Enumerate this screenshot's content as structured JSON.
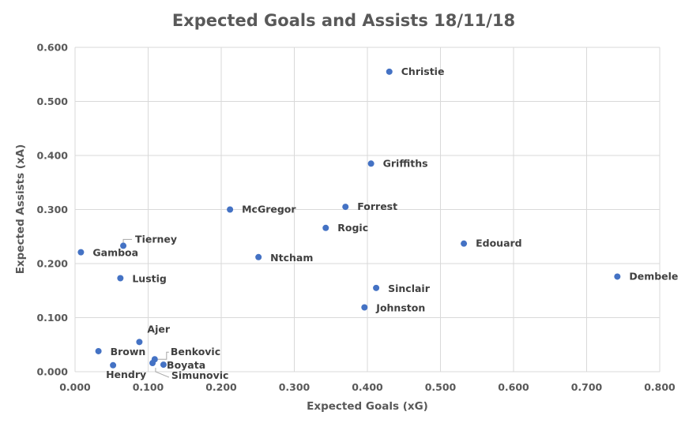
{
  "chart_data": {
    "type": "scatter",
    "title": "Expected Goals and Assists 18/11/18",
    "xlabel": "Expected Goals (xG)",
    "ylabel": "Expected Assists (xA)",
    "xlim": [
      0,
      0.8
    ],
    "ylim": [
      0,
      0.6
    ],
    "x_ticks": [
      "0.000",
      "0.100",
      "0.200",
      "0.300",
      "0.400",
      "0.500",
      "0.600",
      "0.700",
      "0.800"
    ],
    "y_ticks": [
      "0.000",
      "0.100",
      "0.200",
      "0.300",
      "0.400",
      "0.500",
      "0.600"
    ],
    "grid": true,
    "marker_color": "#4472c4",
    "points": [
      {
        "label": "Christie",
        "x": 0.43,
        "y": 0.555
      },
      {
        "label": "Griffiths",
        "x": 0.405,
        "y": 0.385
      },
      {
        "label": "Forrest",
        "x": 0.37,
        "y": 0.305
      },
      {
        "label": "McGregor",
        "x": 0.212,
        "y": 0.3
      },
      {
        "label": "Rogic",
        "x": 0.343,
        "y": 0.266
      },
      {
        "label": "Edouard",
        "x": 0.532,
        "y": 0.237
      },
      {
        "label": "Tierney",
        "x": 0.066,
        "y": 0.233
      },
      {
        "label": "Gamboa",
        "x": 0.008,
        "y": 0.221
      },
      {
        "label": "Ntcham",
        "x": 0.251,
        "y": 0.212
      },
      {
        "label": "Dembele",
        "x": 0.742,
        "y": 0.176
      },
      {
        "label": "Lustig",
        "x": 0.062,
        "y": 0.173
      },
      {
        "label": "Sinclair",
        "x": 0.412,
        "y": 0.155
      },
      {
        "label": "Johnston",
        "x": 0.396,
        "y": 0.119
      },
      {
        "label": "Ajer",
        "x": 0.088,
        "y": 0.055
      },
      {
        "label": "Brown",
        "x": 0.032,
        "y": 0.038
      },
      {
        "label": "Benkovic",
        "x": 0.109,
        "y": 0.023
      },
      {
        "label": "Boyata",
        "x": 0.106,
        "y": 0.016
      },
      {
        "label": "Hendry",
        "x": 0.052,
        "y": 0.012
      },
      {
        "label": "Simunovic",
        "x": 0.121,
        "y": 0.013
      }
    ]
  }
}
